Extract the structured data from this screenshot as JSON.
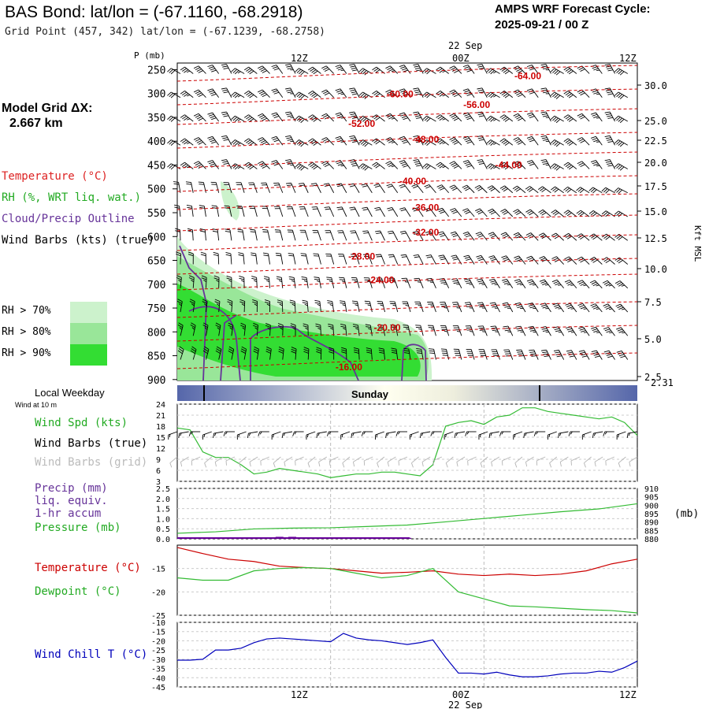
{
  "header": {
    "title": "BAS Bond:  lat/lon = (-67.1160, -68.2918)",
    "subtitle": "Grid Point (457, 342) lat/lon = (-67.1239, -68.2758)",
    "cycle_line1": "AMPS WRF Forecast Cycle:",
    "cycle_line2": "2025-09-21 / 00  Z",
    "model_grid_label": "Model Grid ΔX:",
    "model_grid_value": "2.667 km"
  },
  "legend": {
    "temperature": "Temperature (°C)",
    "rh": "RH (%, WRT liq. wat.)",
    "cloud": "Cloud/Precip Outline",
    "wind_barbs": "Wind Barbs (kts) (true)",
    "rh70": "RH > 70%",
    "rh80": "RH > 80%",
    "rh90": "RH > 90%",
    "local_weekday": "Local Weekday",
    "wind_at_10m": "Wind at 10 m",
    "wind_spd": "Wind Spd (kts)",
    "wind_barbs_true": "Wind Barbs (true)",
    "wind_barbs_grid": "Wind Barbs (grid)",
    "precip1": "Precip (mm)",
    "precip2": "liq. equiv.",
    "precip3": "1-hr accum",
    "pressure": "Pressure (mb)",
    "temp2": "Temperature (°C)",
    "dewpoint": "Dewpoint (°C)",
    "wind_chill": "Wind Chill T (°C)"
  },
  "colors": {
    "temperature": "#cc0000",
    "rh_legend": "#dd2222",
    "rh_green": "#22aa22",
    "cloud": "#663399",
    "wind_barb": "#000000",
    "wind_barb_grid": "#b4b4b4",
    "rh70": "#ccf2cc",
    "rh80": "#99e699",
    "rh90": "#33dd33",
    "wind_speed": "#33bb33",
    "pressure": "#33bb33",
    "precip": "#660099",
    "dewpoint": "#33bb33",
    "wind_chill": "#0000bb",
    "weekday_band": "#5566aa"
  },
  "chart_data": [
    {
      "type": "heatmap",
      "name": "time-height cross section",
      "time_ticks": [
        "12Z",
        "00Z",
        "12Z"
      ],
      "date_label": "22 Sep",
      "y_axis_label": "P (mb)",
      "pressure_levels": [
        250,
        300,
        350,
        400,
        450,
        500,
        550,
        600,
        650,
        700,
        750,
        800,
        850,
        900
      ],
      "height_axis_label": "Kft MSL",
      "height_ticks": [
        "30.0",
        "25.0",
        "22.5",
        "20.0",
        "17.5",
        "15.0",
        "12.5",
        "10.0",
        "7.5",
        "5.0",
        "2.5",
        "2.31"
      ],
      "isotherm_labels": [
        {
          "text": "-64.00",
          "hour": 27,
          "p": 262
        },
        {
          "text": "-60.00",
          "hour": 17,
          "p": 300
        },
        {
          "text": "-56.00",
          "hour": 23,
          "p": 322
        },
        {
          "text": "-52.00",
          "hour": 14,
          "p": 362
        },
        {
          "text": "-48.00",
          "hour": 19,
          "p": 395
        },
        {
          "text": "-44.00",
          "hour": 25.5,
          "p": 448
        },
        {
          "text": "-40.00",
          "hour": 18,
          "p": 482
        },
        {
          "text": "-36.00",
          "hour": 19,
          "p": 538
        },
        {
          "text": "-32.00",
          "hour": 19,
          "p": 590
        },
        {
          "text": "-28.00",
          "hour": 14,
          "p": 640
        },
        {
          "text": "-24.00",
          "hour": 15.5,
          "p": 690
        },
        {
          "text": "-20.00",
          "hour": 16,
          "p": 790
        },
        {
          "text": "-16.00",
          "hour": 13,
          "p": 872
        }
      ]
    },
    {
      "type": "line",
      "name": "10 m wind speed",
      "y_ticks": [
        3,
        6,
        9,
        12,
        15,
        18,
        21,
        24
      ],
      "ylim": [
        3,
        24
      ],
      "x_hours": [
        0,
        1,
        2,
        3,
        4,
        5,
        6,
        7,
        8,
        9,
        10,
        11,
        12,
        13,
        14,
        15,
        16,
        17,
        18,
        19,
        20,
        21,
        22,
        23,
        24,
        25,
        26,
        27,
        28,
        29,
        30,
        31,
        32,
        33,
        34,
        35,
        36
      ],
      "values": [
        17.5,
        17,
        11,
        9.5,
        9.5,
        7.5,
        5,
        5.5,
        6.5,
        6,
        5.5,
        5,
        4,
        4.5,
        5,
        5,
        5.5,
        5.5,
        5,
        4.5,
        7.5,
        18,
        19,
        19.5,
        18.5,
        20.5,
        21,
        23,
        23,
        22,
        21.5,
        21,
        20.5,
        20,
        20.5,
        19,
        15.5
      ]
    },
    {
      "type": "line",
      "name": "precip and pressure",
      "precip_ticks": [
        0.0,
        0.5,
        1.0,
        1.5,
        2.0,
        2.5
      ],
      "precip_lim": [
        0,
        2.5
      ],
      "precip_bars": [
        {
          "hour": 1,
          "value": 0.05
        },
        {
          "hour": 3,
          "value": 0.05
        },
        {
          "hour": 5,
          "value": 0.03
        },
        {
          "hour": 8,
          "value": 0.1
        },
        {
          "hour": 9,
          "value": 0.1
        },
        {
          "hour": 11,
          "value": 0.05
        },
        {
          "hour": 18,
          "value": 0.05
        }
      ],
      "pressure_ticks": [
        880,
        885,
        890,
        895,
        900,
        905,
        910
      ],
      "pressure_unit": "(mb)",
      "pressure_lim": [
        880,
        910
      ],
      "x_hours": [
        0,
        3,
        6,
        9,
        12,
        15,
        18,
        21,
        24,
        27,
        30,
        33,
        36
      ],
      "pressure": [
        883.3,
        884.2,
        885.9,
        886.4,
        886.6,
        887.4,
        888.2,
        890.1,
        892.1,
        894.1,
        896.1,
        897.8,
        900.9
      ]
    },
    {
      "type": "line",
      "name": "temperature and dewpoint",
      "y_ticks": [
        -15,
        -20,
        -25
      ],
      "ylim": [
        -25,
        -10
      ],
      "x_hours": [
        0,
        2,
        4,
        6,
        8,
        10,
        12,
        14,
        16,
        18,
        20,
        22,
        24,
        26,
        28,
        30,
        32,
        34,
        36
      ],
      "temperature": [
        -10.5,
        -11.8,
        -13,
        -13.5,
        -14.5,
        -14.8,
        -15,
        -15.5,
        -16,
        -15.8,
        -15.5,
        -16.2,
        -16.5,
        -16.2,
        -16.5,
        -16.2,
        -15.5,
        -14,
        -13
      ],
      "dewpoint": [
        -17,
        -17.5,
        -17.5,
        -15.5,
        -15,
        -14.8,
        -15,
        -16,
        -17,
        -16.5,
        -15,
        -20,
        -21.5,
        -23,
        -23.2,
        -23.5,
        -23.8,
        -24,
        -24.5
      ]
    },
    {
      "type": "line",
      "name": "wind chill",
      "y_ticks": [
        -10,
        -15,
        -20,
        -25,
        -30,
        -35,
        -40,
        -45
      ],
      "ylim": [
        -45,
        -10
      ],
      "x_hours": [
        0,
        1,
        2,
        3,
        4,
        5,
        6,
        7,
        8,
        9,
        10,
        11,
        12,
        13,
        14,
        15,
        16,
        17,
        18,
        19,
        20,
        21,
        22,
        23,
        24,
        25,
        26,
        27,
        28,
        29,
        30,
        31,
        32,
        33,
        34,
        35,
        36
      ],
      "values": [
        -30.5,
        -30.5,
        -30,
        -25,
        -25,
        -24,
        -21,
        -19,
        -18.5,
        -19,
        -19.5,
        -20,
        -20.5,
        -16,
        -18.5,
        -19.5,
        -20,
        -21,
        -22,
        -21,
        -19.5,
        -29,
        -37.5,
        -37.5,
        -38,
        -37,
        -38.5,
        -39.5,
        -39.5,
        -39,
        -38,
        -37.5,
        -37.5,
        -36.5,
        -37,
        -34.5,
        -31
      ]
    }
  ],
  "weekday_bar": {
    "label": "Sunday"
  },
  "bottom_axis": {
    "ticks": [
      "12Z",
      "00Z",
      "12Z"
    ],
    "date": "22 Sep"
  }
}
